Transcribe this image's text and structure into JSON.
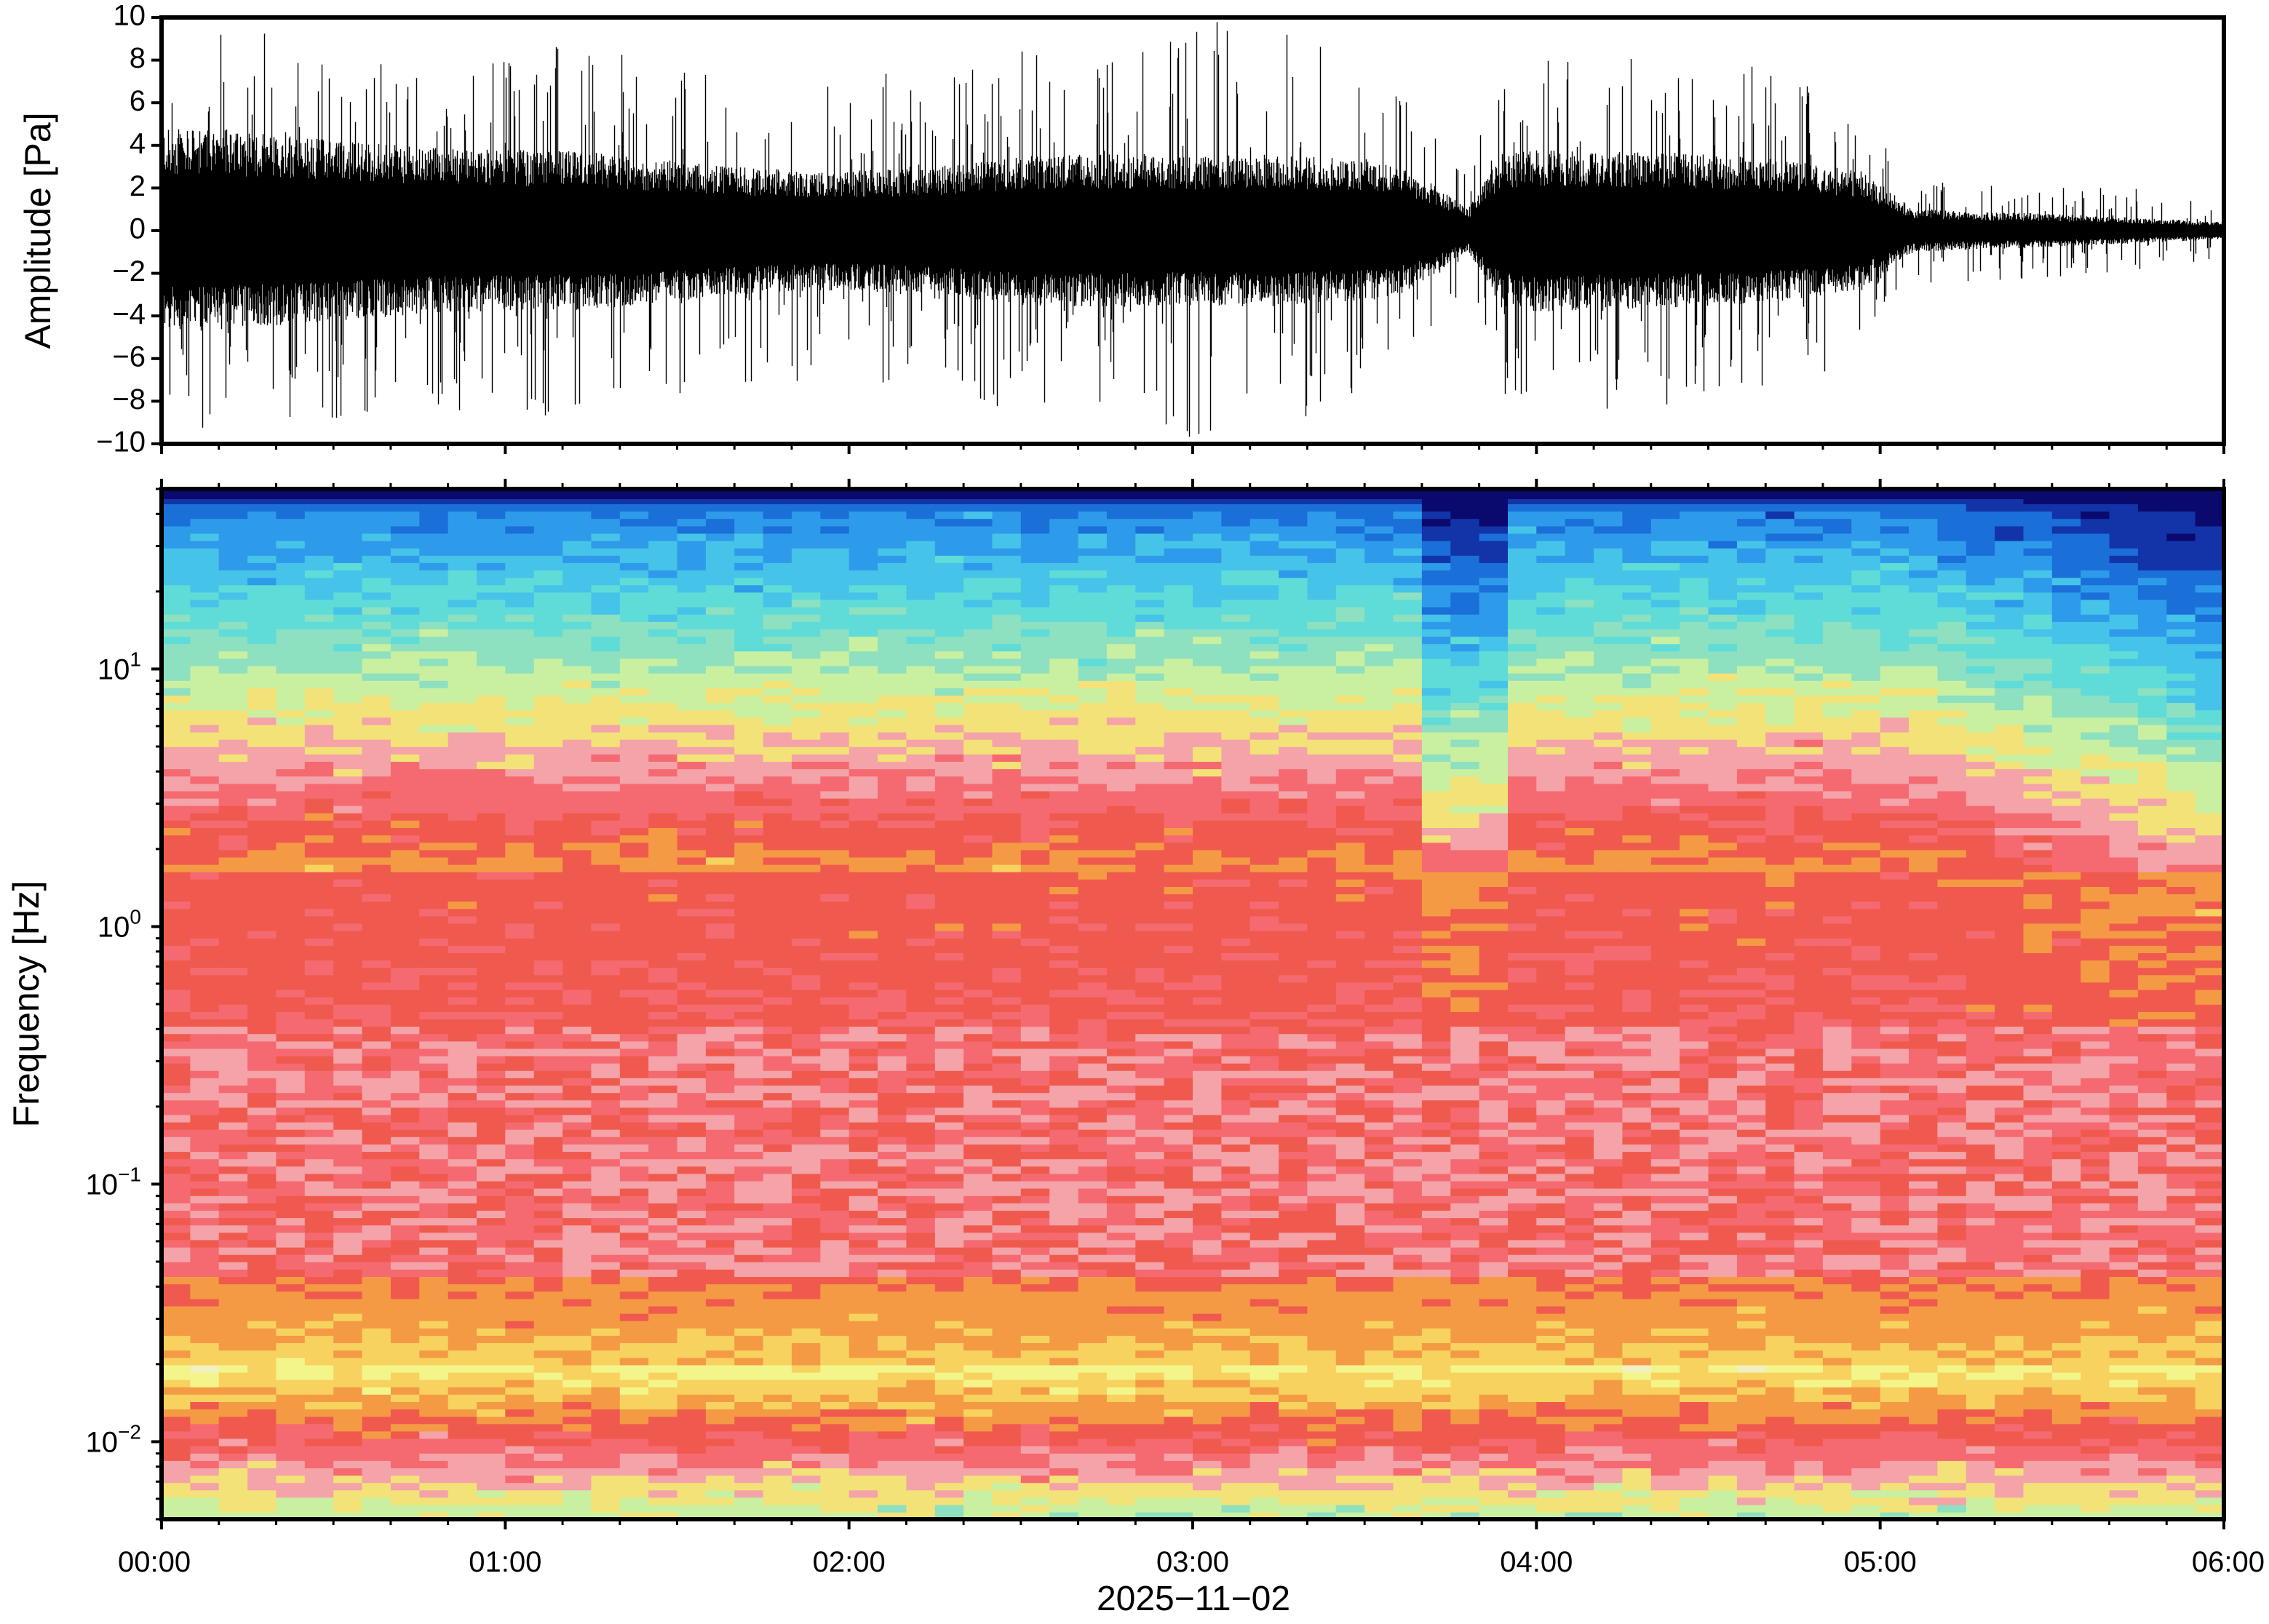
{
  "chart_data": [
    {
      "type": "line",
      "ylabel": "Amplitude [Pa]",
      "ylim": [
        -10,
        10
      ],
      "y_ticks": [
        "10",
        "8",
        "6",
        "4",
        "2",
        "0",
        "−2",
        "−4",
        "−6",
        "−8",
        "−10"
      ],
      "x_ticks": [
        "00:00",
        "01:00",
        "02:00",
        "03:00",
        "04:00",
        "05:00",
        "06:00"
      ],
      "x_range_hours": [
        0,
        6
      ],
      "series_color": "#000000",
      "envelope": {
        "x_hours": [
          0,
          0.25,
          0.5,
          0.75,
          1.0,
          1.25,
          1.5,
          1.75,
          2.0,
          2.25,
          2.5,
          2.75,
          3.0,
          3.25,
          3.5,
          3.6,
          3.7,
          3.8,
          3.9,
          4.0,
          4.25,
          4.5,
          4.75,
          4.95,
          5.1,
          5.25,
          5.5,
          5.75,
          6.0
        ],
        "typical_amplitude": [
          4.8,
          4.6,
          4.3,
          3.9,
          3.8,
          3.7,
          3.3,
          2.9,
          2.8,
          3.0,
          3.5,
          3.6,
          3.5,
          3.6,
          3.3,
          3.0,
          2.2,
          1.0,
          3.6,
          3.8,
          3.7,
          3.6,
          3.3,
          2.8,
          1.0,
          0.9,
          0.8,
          0.6,
          0.4
        ],
        "peak_amplitude": [
          10,
          9.5,
          9.2,
          8.5,
          8.5,
          9.0,
          8.0,
          7.0,
          7.5,
          7.5,
          8.5,
          8.0,
          10,
          10,
          7.5,
          7.0,
          4.5,
          3.0,
          8.0,
          8.5,
          8.5,
          8.0,
          7.5,
          5.5,
          2.5,
          2.5,
          2.2,
          2.0,
          1.2
        ]
      }
    },
    {
      "type": "heatmap",
      "ylabel": "Frequency [Hz]",
      "xlabel": "2025−11−02",
      "y_scale": "log",
      "ylim": [
        0.005,
        50
      ],
      "y_ticks": [
        {
          "value": 0.01,
          "base": "10",
          "exp": "−2"
        },
        {
          "value": 0.1,
          "base": "10",
          "exp": "−1"
        },
        {
          "value": 1,
          "base": "10",
          "exp": "0"
        },
        {
          "value": 10,
          "base": "10",
          "exp": "1"
        }
      ],
      "x_ticks": [
        "00:00",
        "01:00",
        "02:00",
        "03:00",
        "04:00",
        "05:00",
        "06:00"
      ],
      "x_range_hours": [
        0,
        6
      ],
      "colormap": [
        "#f0f0c0",
        "#f3f58a",
        "#f7d25e",
        "#f49a44",
        "#f05a4e",
        "#f56a70",
        "#f4a3a8",
        "#f3e277",
        "#c9f0a0",
        "#8de0c0",
        "#5fdcd7",
        "#46c3e8",
        "#2d9bea",
        "#1b6fd8",
        "#1234a8",
        "#0a0a6e"
      ],
      "time_slices": 72,
      "freq_bins": 140
    }
  ]
}
